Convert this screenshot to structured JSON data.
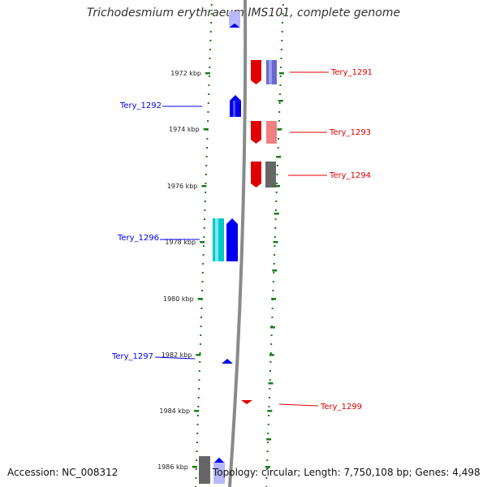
{
  "title": "Trichodesmium erythraeum IMS101, complete genome",
  "accession": "Accession: NC_008312",
  "summary": "Topology: circular; Length: 7,750,108 bp; Genes: 4,498",
  "colors": {
    "forward": "#e00000",
    "forward_light": "#f08080",
    "reverse": "#0000ee",
    "reverse_light": "#b8b8ff",
    "cyan": "#00c8c8",
    "purple": "#6a6ad0",
    "gray": "#666666",
    "backbone": "#8a8a8a",
    "dots": "#1a7a1a"
  },
  "ticks": [
    {
      "label": "1972 kbp"
    },
    {
      "label": "1974 kbp"
    },
    {
      "label": "1976 kbp"
    },
    {
      "label": "1978 kbp"
    },
    {
      "label": "1980 kbp"
    },
    {
      "label": "1982 kbp"
    },
    {
      "label": "1984 kbp"
    },
    {
      "label": "1986 kbp"
    }
  ],
  "genes": [
    {
      "name": "Tery_1291",
      "strand": "+"
    },
    {
      "name": "Tery_1292",
      "strand": "-"
    },
    {
      "name": "Tery_1293",
      "strand": "+"
    },
    {
      "name": "Tery_1294",
      "strand": "+"
    },
    {
      "name": "Tery_1296",
      "strand": "-"
    },
    {
      "name": "Tery_1297",
      "strand": "-"
    },
    {
      "name": "Tery_1299",
      "strand": "+"
    }
  ]
}
